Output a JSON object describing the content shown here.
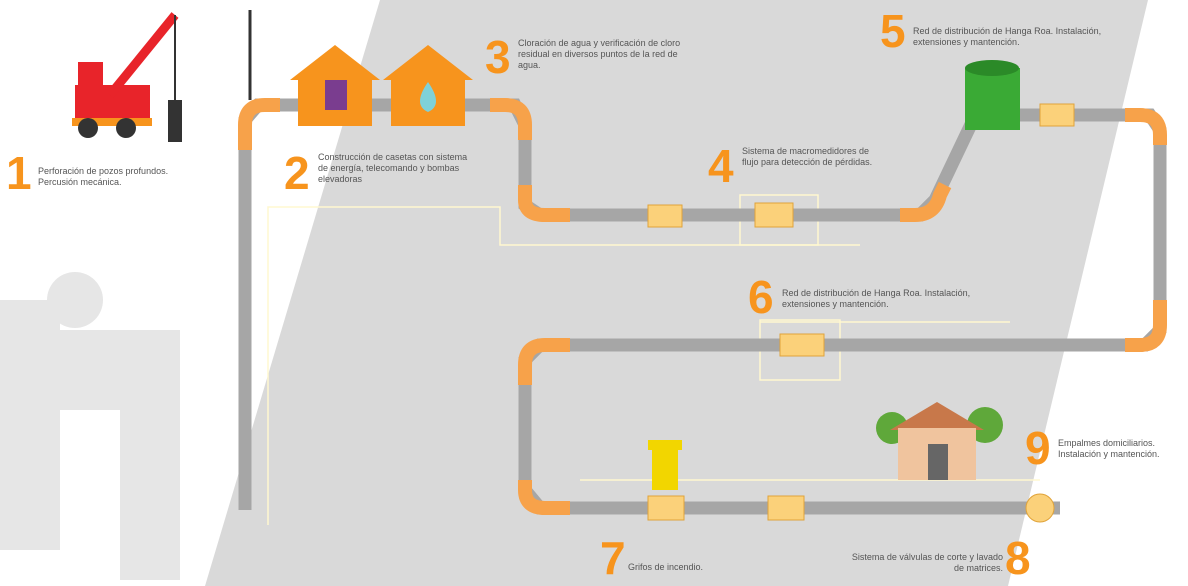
{
  "steps": [
    {
      "number": "1",
      "text": "Perforación de pozos profundos. Percusión mecánica."
    },
    {
      "number": "2",
      "text": "Construcción de casetas con sistema de energía, telecomando y bombas elevadoras"
    },
    {
      "number": "3",
      "text": "Cloración de agua y verificación de cloro residual en diversos puntos de la red de agua."
    },
    {
      "number": "4",
      "text": "Sistema de macromedidores de flujo para detección de pérdidas."
    },
    {
      "number": "5",
      "text": "Red de distribución de Hanga Roa. Instalación, extensiones y mantención."
    },
    {
      "number": "6",
      "text": "Red de distribución de Hanga Roa. Instalación, extensiones y mantención."
    },
    {
      "number": "7",
      "text": "Grifos de incendio."
    },
    {
      "number": "8",
      "text": "Sistema de válvulas de corte y lavado de matrices."
    },
    {
      "number": "9",
      "text": "Empalmes domiciliarios. Instalación y mantención."
    }
  ]
}
